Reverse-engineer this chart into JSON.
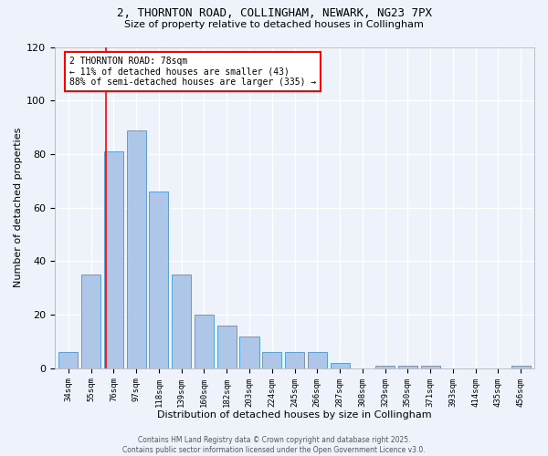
{
  "title1": "2, THORNTON ROAD, COLLINGHAM, NEWARK, NG23 7PX",
  "title2": "Size of property relative to detached houses in Collingham",
  "xlabel": "Distribution of detached houses by size in Collingham",
  "ylabel": "Number of detached properties",
  "bin_labels": [
    "34sqm",
    "55sqm",
    "76sqm",
    "97sqm",
    "118sqm",
    "139sqm",
    "160sqm",
    "182sqm",
    "203sqm",
    "224sqm",
    "245sqm",
    "266sqm",
    "287sqm",
    "308sqm",
    "329sqm",
    "350sqm",
    "371sqm",
    "393sqm",
    "414sqm",
    "435sqm",
    "456sqm"
  ],
  "bar_values": [
    6,
    35,
    81,
    89,
    66,
    35,
    20,
    16,
    12,
    6,
    6,
    6,
    2,
    0,
    1,
    1,
    1,
    0,
    0,
    0,
    1
  ],
  "bar_color": "#aec6e8",
  "bar_edge_color": "#5a9fd4",
  "red_line_index": 2,
  "annotation_text": "2 THORNTON ROAD: 78sqm\n← 11% of detached houses are smaller (43)\n88% of semi-detached houses are larger (335) →",
  "annotation_box_color": "white",
  "annotation_box_edge_color": "red",
  "footer_line1": "Contains HM Land Registry data © Crown copyright and database right 2025.",
  "footer_line2": "Contains public sector information licensed under the Open Government Licence v3.0.",
  "background_color": "#eef2fa",
  "grid_color": "white",
  "ylim": [
    0,
    120
  ],
  "yticks": [
    0,
    20,
    40,
    60,
    80,
    100,
    120
  ]
}
